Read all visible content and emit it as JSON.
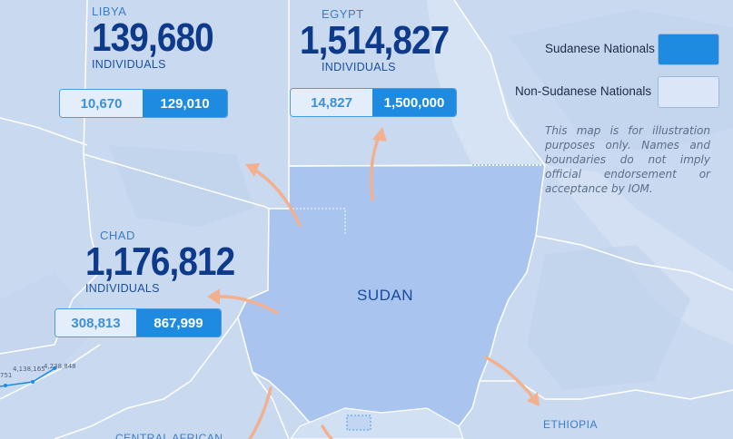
{
  "countries": {
    "libya": {
      "name": "LIBYA",
      "total": "139,680",
      "unit": "INDIVIDUALS",
      "non_sudanese": "10,670",
      "sudanese": "129,010"
    },
    "egypt": {
      "name": "EGYPT",
      "total": "1,514,827",
      "unit": "INDIVIDUALS",
      "non_sudanese": "14,827",
      "sudanese": "1,500,000"
    },
    "chad": {
      "name": "CHAD",
      "total": "1,176,812",
      "unit": "INDIVIDUALS",
      "non_sudanese": "308,813",
      "sudanese": "867,999"
    }
  },
  "map_labels": {
    "sudan": "SUDAN",
    "ethiopia": "ETHIOPIA",
    "car": "CENTRAL AFRICAN"
  },
  "legend": {
    "sudanese": "Sudanese Nationals",
    "non_sudanese": "Non-Sudanese Nationals"
  },
  "disclaimer": "This map is for illustration purposes only. Names and boundaries do not imply official endorsement or acceptance by IOM.",
  "mini_chart": {
    "labels": [
      "751",
      "4,138,165",
      "4,238,848"
    ]
  },
  "colors": {
    "background": "#c9d9f0",
    "sudan": "#a9c5ef",
    "sudanese": "#1f8be0",
    "non_sudanese": "#e4eefb",
    "arrow": "#f2b08e",
    "title": "#0d3a8a"
  }
}
